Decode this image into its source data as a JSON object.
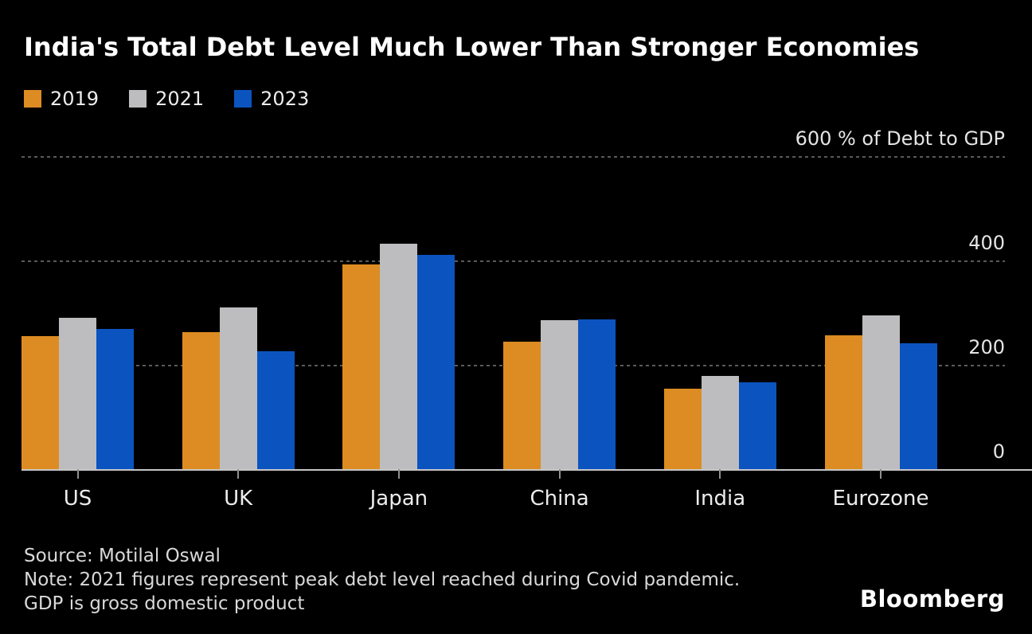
{
  "title": "India's Total Debt Level Much Lower Than Stronger Economies",
  "chart_data": {
    "type": "bar",
    "title": "India's Total Debt Level Much Lower Than Stronger Economies",
    "categories": [
      "US",
      "UK",
      "Japan",
      "China",
      "India",
      "Eurozone"
    ],
    "series": [
      {
        "name": "2019",
        "color": "#dc8c22",
        "values": [
          255,
          262,
          392,
          245,
          154,
          257
        ]
      },
      {
        "name": "2021",
        "color": "#bdbdbf",
        "values": [
          290,
          310,
          432,
          286,
          179,
          294
        ]
      },
      {
        "name": "2023",
        "color": "#0b54c0",
        "values": [
          269,
          226,
          410,
          287,
          167,
          241
        ]
      }
    ],
    "xlabel": "",
    "ylabel": "% of Debt to GDP",
    "yticks": [
      600,
      400,
      200,
      0
    ],
    "ylim": [
      0,
      600
    ],
    "grid": "horizontal-dashed",
    "legend_position": "top-left",
    "background": "#000000"
  },
  "footer": {
    "source": "Source: Motilal Oswal",
    "note_line1": "Note: 2021 figures represent peak debt level reached during Covid pandemic.",
    "note_line2": "GDP is gross domestic product"
  },
  "branding": "Bloomberg"
}
